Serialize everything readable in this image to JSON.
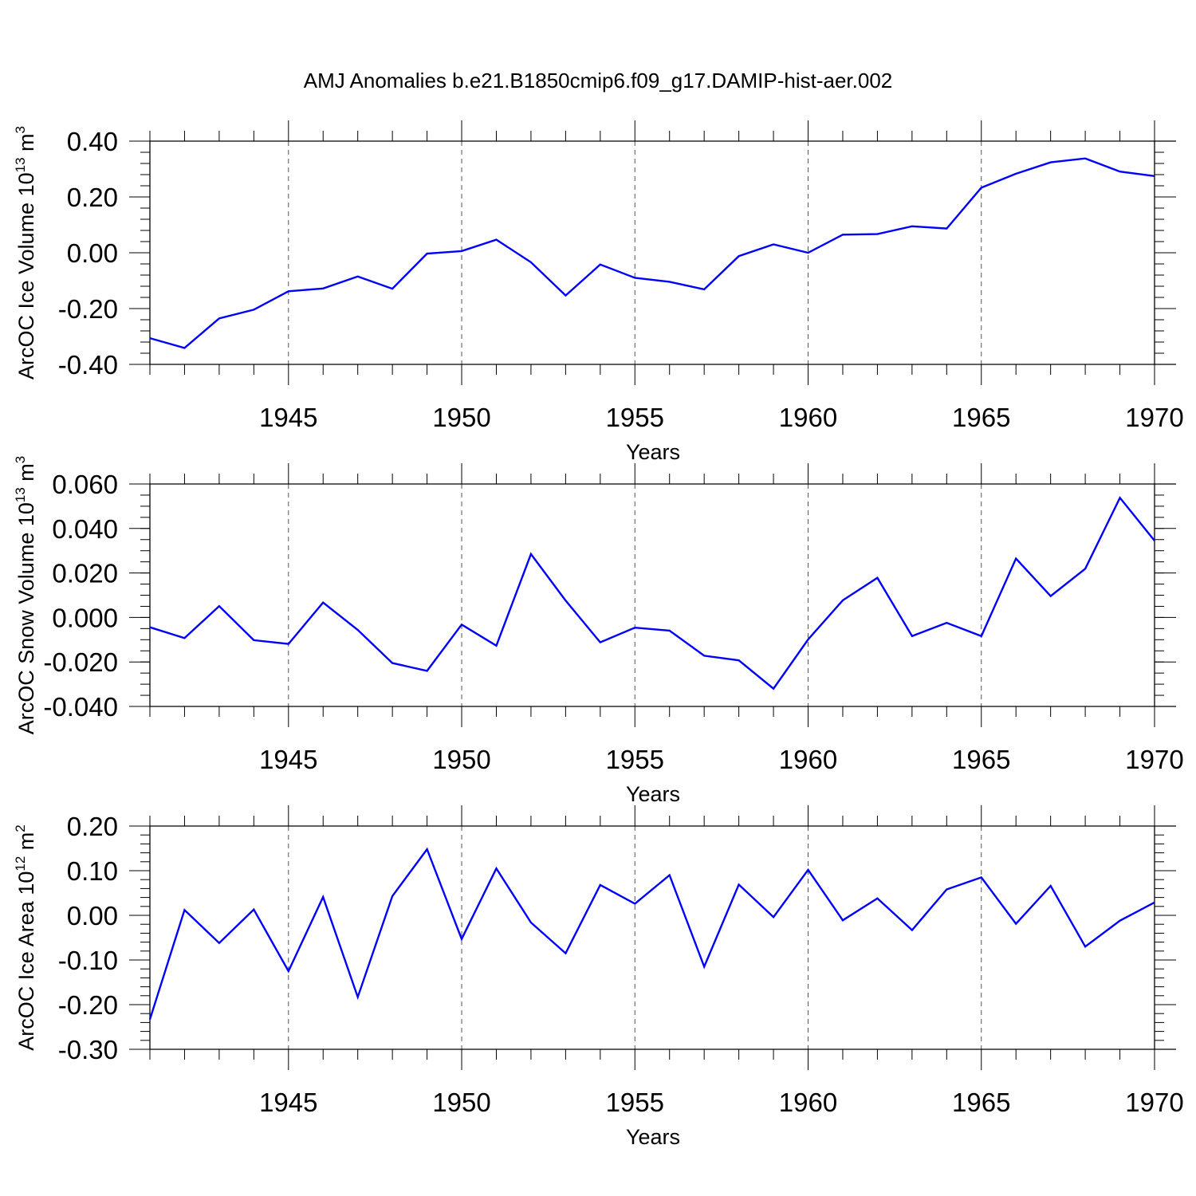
{
  "title": "AMJ Anomalies b.e21.B1850cmip6.f09_g17.DAMIP-hist-aer.002",
  "colors": {
    "line": "#0000ff",
    "frame": "#000000",
    "grid": "#555555"
  },
  "chart_data": [
    {
      "type": "line",
      "title": "AMJ Anomalies b.e21.B1850cmip6.f09_g17.DAMIP-hist-aer.002",
      "xlabel": "Years",
      "ylabel": {
        "base": "ArcOC Ice Volume 10",
        "exp1": "13",
        "unit": " m",
        "exp2": "3"
      },
      "xlim": [
        1941,
        1970
      ],
      "ylim": [
        -0.4,
        0.4
      ],
      "xticks": [
        1945,
        1950,
        1955,
        1960,
        1965,
        1970
      ],
      "xtick_labels": [
        "1945",
        "1950",
        "1955",
        "1960",
        "1965",
        "1970"
      ],
      "yticks": [
        -0.4,
        -0.2,
        0.0,
        0.2,
        0.4
      ],
      "ytick_labels": [
        "-0.40",
        "-0.20",
        "0.00",
        "0.20",
        "0.40"
      ],
      "yminor_step": 0.04,
      "grid": "vertical-dashed-at-major-x",
      "series": [
        {
          "name": "ArcOC Ice Volume",
          "x": [
            1941,
            1942,
            1943,
            1944,
            1945,
            1946,
            1947,
            1948,
            1949,
            1950,
            1951,
            1952,
            1953,
            1954,
            1955,
            1956,
            1957,
            1958,
            1959,
            1960,
            1961,
            1962,
            1963,
            1964,
            1965,
            1966,
            1967,
            1968,
            1969,
            1970
          ],
          "values": [
            -0.306,
            -0.341,
            -0.235,
            -0.204,
            -0.138,
            -0.128,
            -0.085,
            -0.129,
            -0.003,
            0.006,
            0.047,
            -0.034,
            -0.153,
            -0.042,
            -0.09,
            -0.104,
            -0.131,
            -0.012,
            0.03,
            0.0,
            0.065,
            0.067,
            0.095,
            0.087,
            0.233,
            0.283,
            0.324,
            0.338,
            0.291,
            0.275
          ]
        }
      ]
    },
    {
      "type": "line",
      "xlabel": "Years",
      "ylabel": {
        "base": "ArcOC Snow Volume 10",
        "exp1": "13",
        "unit": " m",
        "exp2": "3"
      },
      "xlim": [
        1941,
        1970
      ],
      "ylim": [
        -0.04,
        0.06
      ],
      "xticks": [
        1945,
        1950,
        1955,
        1960,
        1965,
        1970
      ],
      "xtick_labels": [
        "1945",
        "1950",
        "1955",
        "1960",
        "1965",
        "1970"
      ],
      "yticks": [
        -0.04,
        -0.02,
        0.0,
        0.02,
        0.04,
        0.06
      ],
      "ytick_labels": [
        "-0.040",
        "-0.020",
        "0.000",
        "0.020",
        "0.040",
        "0.060"
      ],
      "yminor_step": 0.005,
      "grid": "vertical-dashed-at-major-x",
      "series": [
        {
          "name": "ArcOC Snow Volume",
          "x": [
            1941,
            1942,
            1943,
            1944,
            1945,
            1946,
            1947,
            1948,
            1949,
            1950,
            1951,
            1952,
            1953,
            1954,
            1955,
            1956,
            1957,
            1958,
            1959,
            1960,
            1961,
            1962,
            1963,
            1964,
            1965,
            1966,
            1967,
            1968,
            1969,
            1970
          ],
          "values": [
            -0.0044,
            -0.0093,
            0.0051,
            -0.0102,
            -0.0119,
            0.0067,
            -0.0056,
            -0.0205,
            -0.024,
            -0.0032,
            -0.0127,
            0.0285,
            0.0076,
            -0.0112,
            -0.0046,
            -0.0059,
            -0.0172,
            -0.0193,
            -0.032,
            -0.0099,
            0.0077,
            0.0178,
            -0.0084,
            -0.0024,
            -0.0084,
            0.0265,
            0.0096,
            0.0219,
            0.0538,
            0.0345
          ]
        }
      ]
    },
    {
      "type": "line",
      "xlabel": "Years",
      "ylabel": {
        "base": "ArcOC Ice Area 10",
        "exp1": "12",
        "unit": " m",
        "exp2": "2"
      },
      "xlim": [
        1941,
        1970
      ],
      "ylim": [
        -0.3,
        0.2
      ],
      "xticks": [
        1945,
        1950,
        1955,
        1960,
        1965,
        1970
      ],
      "xtick_labels": [
        "1945",
        "1950",
        "1955",
        "1960",
        "1965",
        "1970"
      ],
      "yticks": [
        -0.3,
        -0.2,
        -0.1,
        0.0,
        0.1,
        0.2
      ],
      "ytick_labels": [
        "-0.30",
        "-0.20",
        "-0.10",
        "0.00",
        "0.10",
        "0.20"
      ],
      "yminor_step": 0.02,
      "grid": "vertical-dashed-at-major-x",
      "series": [
        {
          "name": "ArcOC Ice Area",
          "x": [
            1941,
            1942,
            1943,
            1944,
            1945,
            1946,
            1947,
            1948,
            1949,
            1950,
            1951,
            1952,
            1953,
            1954,
            1955,
            1956,
            1957,
            1958,
            1959,
            1960,
            1961,
            1962,
            1963,
            1964,
            1965,
            1966,
            1967,
            1968,
            1969,
            1970
          ],
          "values": [
            -0.233,
            0.012,
            -0.062,
            0.013,
            -0.125,
            0.041,
            -0.183,
            0.043,
            0.148,
            -0.053,
            0.105,
            -0.016,
            -0.085,
            0.068,
            0.026,
            0.09,
            -0.115,
            0.069,
            -0.004,
            0.102,
            -0.011,
            0.038,
            -0.033,
            0.058,
            0.085,
            -0.019,
            0.066,
            -0.07,
            -0.012,
            0.029
          ]
        }
      ]
    }
  ]
}
